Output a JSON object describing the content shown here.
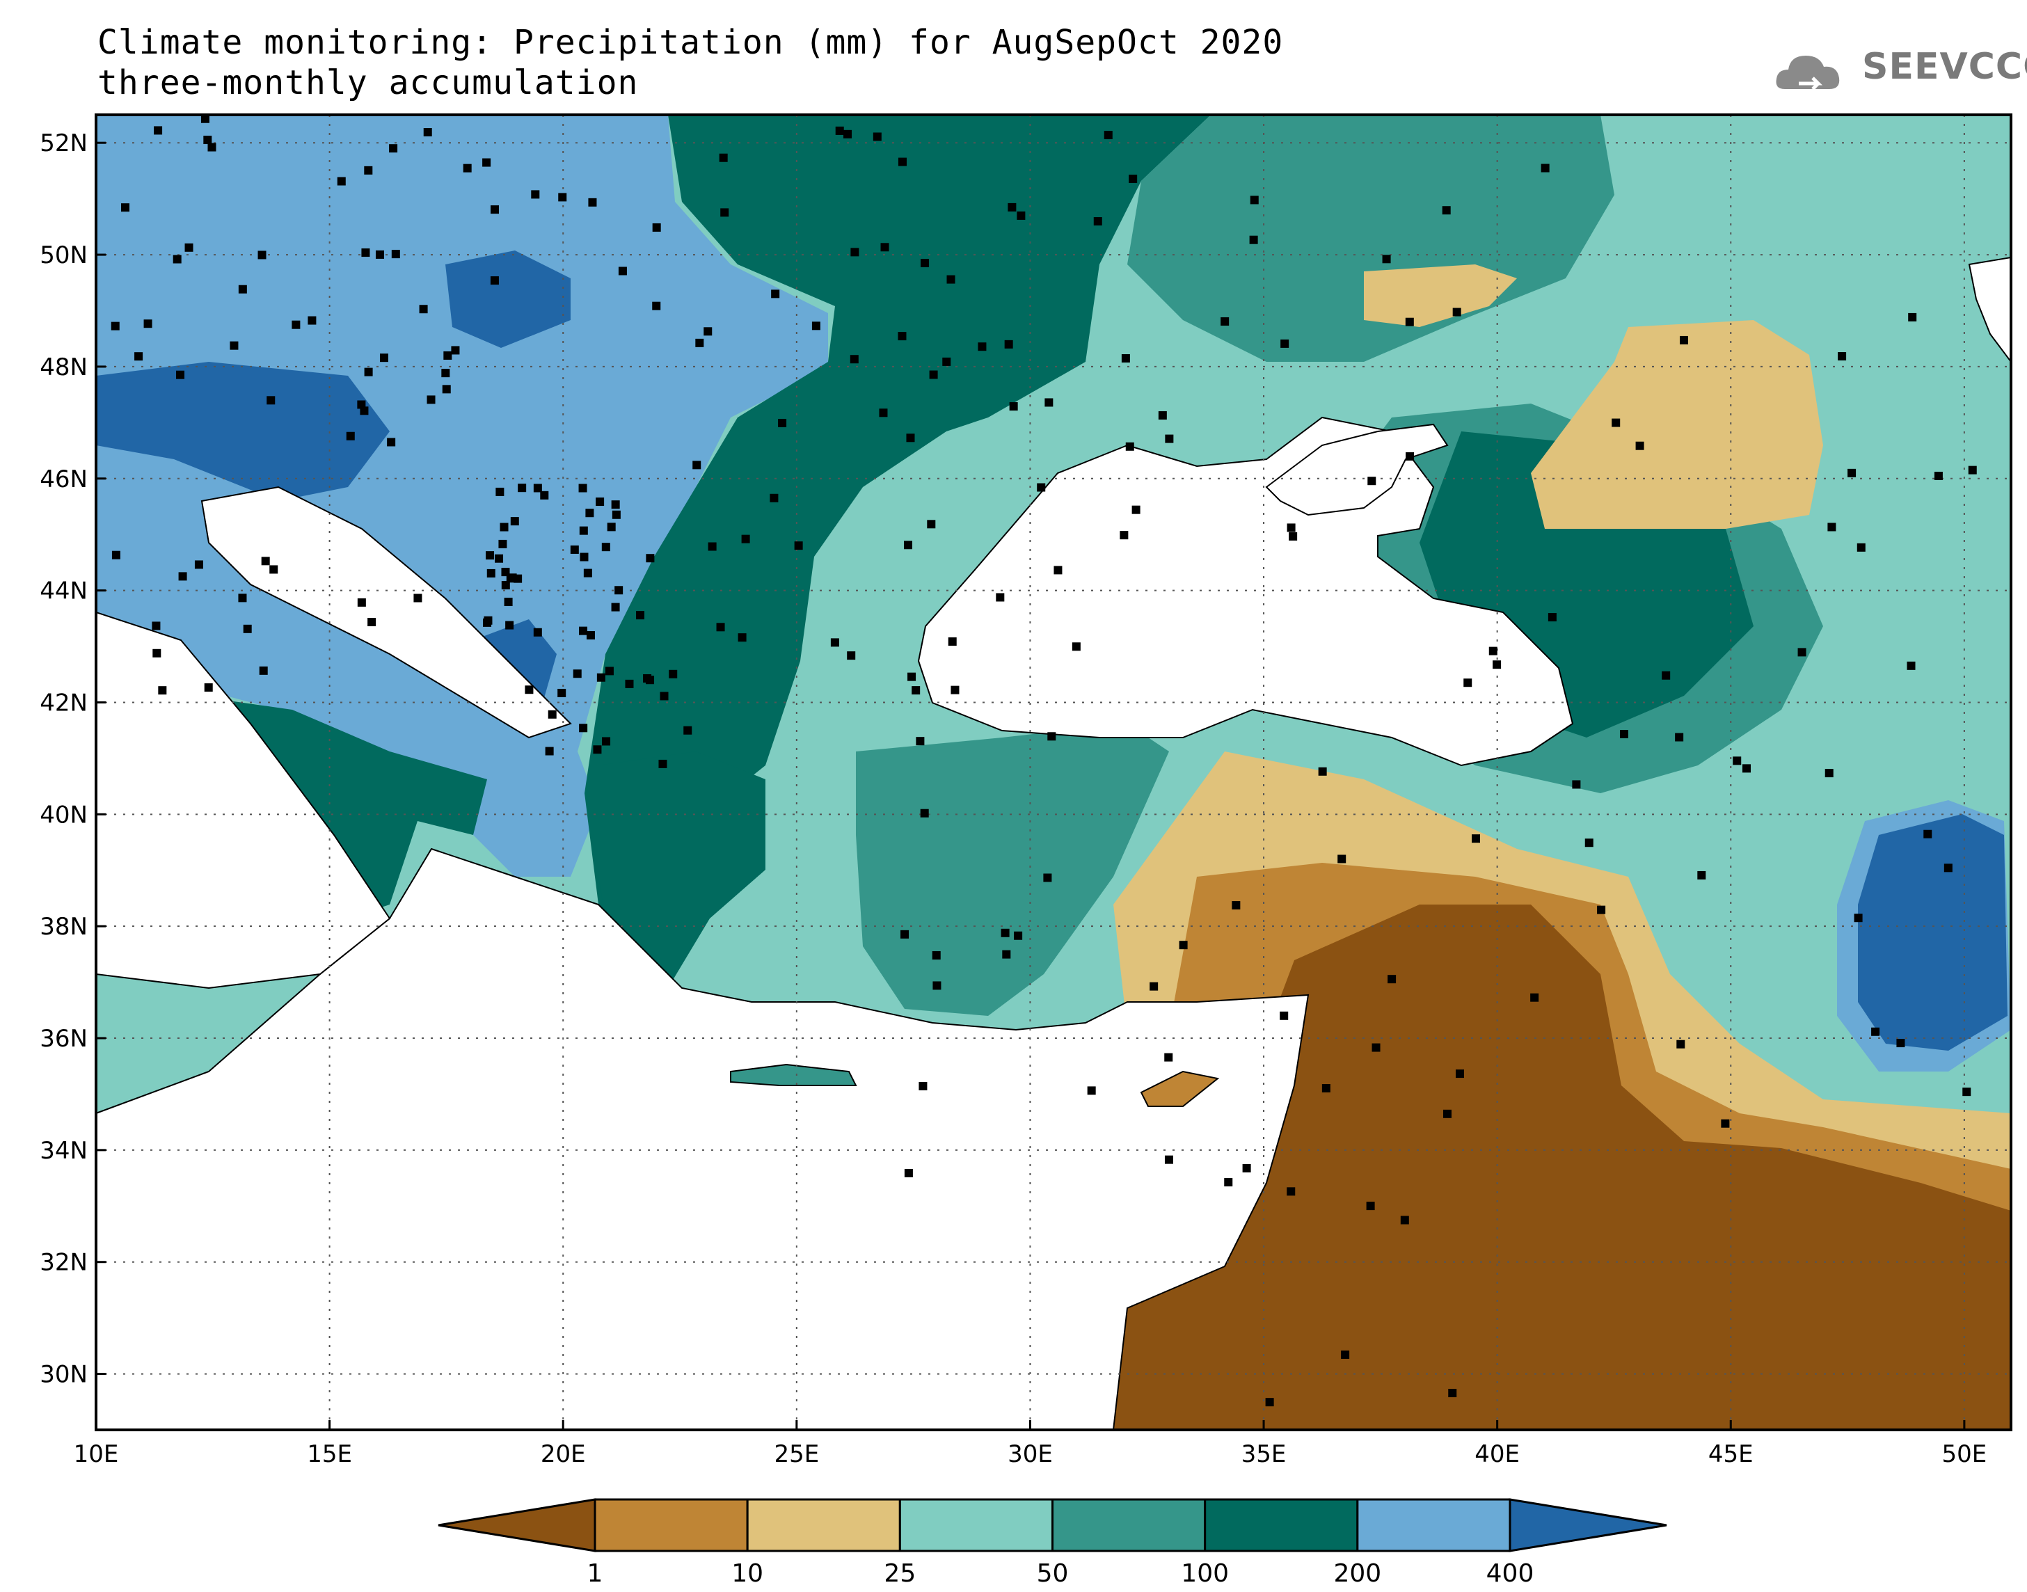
{
  "title": {
    "line1": "Climate monitoring: Precipitation (mm) for AugSepOct 2020",
    "line2": "three-monthly accumulation"
  },
  "logo": {
    "text": "SEEVCCC",
    "icon": "cloud-icon"
  },
  "map": {
    "lon_range": [
      10,
      51
    ],
    "lat_range": [
      29,
      52.5
    ],
    "lon_ticks": [
      "10E",
      "15E",
      "20E",
      "25E",
      "30E",
      "35E",
      "40E",
      "45E",
      "50E"
    ],
    "lat_ticks": [
      "30N",
      "32N",
      "34N",
      "36N",
      "38N",
      "40N",
      "42N",
      "44N",
      "46N",
      "48N",
      "50N",
      "52N"
    ],
    "grid": true
  },
  "colorbar": {
    "labels": [
      "1",
      "10",
      "25",
      "50",
      "100",
      "200",
      "400"
    ],
    "colors": [
      "#8b5212",
      "#bf8535",
      "#e0c27b",
      "#80cdc1",
      "#35968a",
      "#016a5e",
      "#6aaad6",
      "#2166a6"
    ]
  },
  "colors": {
    "land_outline": "#000000",
    "sea": "#ffffff",
    "station": "#000000"
  }
}
